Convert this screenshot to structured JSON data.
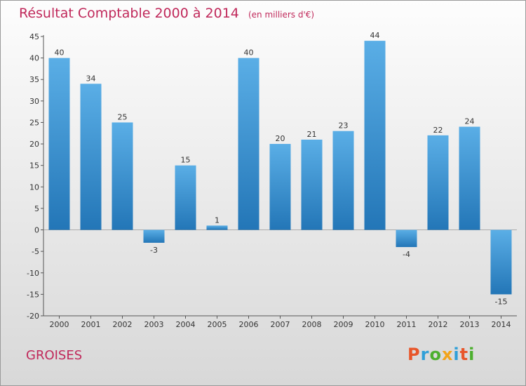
{
  "header": {
    "title": "Résultat Comptable 2000 à 2014",
    "subtitle": "(en milliers d'€)"
  },
  "footer": {
    "town": "GROISES",
    "logo_text": "Proxiti",
    "logo_colors": [
      "#e8562a",
      "#2f9fd8",
      "#4caf2e",
      "#f2a41a",
      "#2f9fd8",
      "#e8562a",
      "#4caf2e"
    ]
  },
  "colors": {
    "bar_light": "#5aaee6",
    "bar_dark": "#2376b7",
    "axis": "#555555",
    "text": "#333333",
    "title": "#c0285a"
  },
  "chart_data": {
    "type": "bar",
    "categories": [
      "2000",
      "2001",
      "2002",
      "2003",
      "2004",
      "2005",
      "2006",
      "2007",
      "2008",
      "2009",
      "2010",
      "2011",
      "2012",
      "2013",
      "2014"
    ],
    "values": [
      40,
      34,
      25,
      -3,
      15,
      1,
      40,
      20,
      21,
      23,
      44,
      -4,
      22,
      24,
      -15
    ],
    "value_labels": [
      "40",
      "34",
      "25",
      "-3",
      "15",
      "1",
      "40",
      "20",
      "21",
      "23",
      "44",
      "-4",
      "22",
      "24",
      "-15"
    ],
    "ylim": [
      -20,
      45
    ],
    "yticks": [
      45,
      40,
      35,
      30,
      25,
      20,
      15,
      10,
      5,
      0,
      -5,
      -10,
      -15,
      -20
    ],
    "ytick_labels": [
      "45",
      "40",
      "35",
      "30",
      "25",
      "20",
      "15",
      "10",
      "5",
      "0",
      "-5",
      "-10",
      "-15",
      "-20"
    ],
    "grid": false,
    "title": "Résultat Comptable 2000 à 2014",
    "xlabel": "",
    "ylabel": ""
  }
}
